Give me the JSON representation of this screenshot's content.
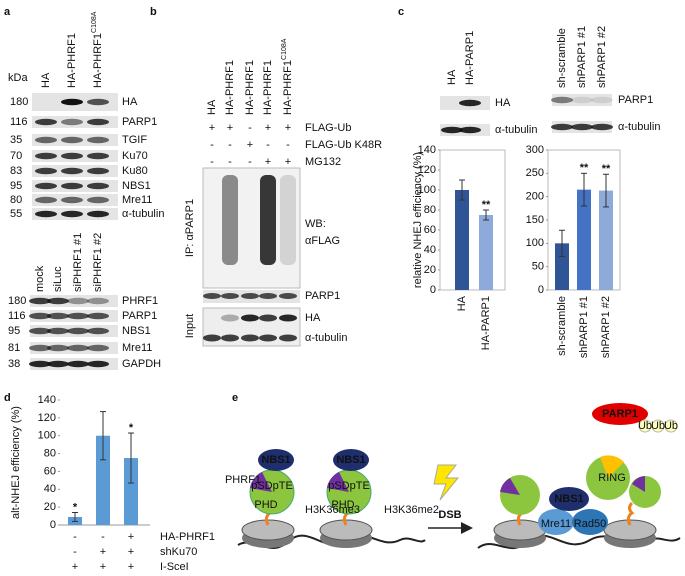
{
  "panel_labels": [
    "a",
    "b",
    "c",
    "d",
    "e"
  ],
  "panel_a": {
    "kda": "kDa",
    "top_lanes": [
      {
        "name": "HA"
      },
      {
        "name": "HA-PHRF1"
      },
      {
        "name": "HA-PHRF1",
        "sup": "C108A"
      }
    ],
    "top_rows": [
      {
        "kda": 180,
        "name": "HA"
      },
      {
        "kda": 116,
        "name": "PARP1"
      },
      {
        "kda": 35,
        "name": "TGIF"
      },
      {
        "kda": 70,
        "name": "Ku70"
      },
      {
        "kda": 83,
        "name": "Ku80"
      },
      {
        "kda": 95,
        "name": "NBS1"
      },
      {
        "kda": 80,
        "name": "Mre11"
      },
      {
        "kda": 55,
        "name": "α-tubulin"
      }
    ],
    "bottom_lanes": [
      {
        "name": "mock"
      },
      {
        "name": "siLuc"
      },
      {
        "name": "siPHRF1 #1"
      },
      {
        "name": "siPHRF1 #2"
      }
    ],
    "bottom_rows": [
      {
        "kda": 180,
        "name": "PHRF1"
      },
      {
        "kda": 116,
        "name": "PARP1"
      },
      {
        "kda": 95,
        "name": "NBS1"
      },
      {
        "kda": 81,
        "name": "Mre11"
      },
      {
        "kda": 38,
        "name": "GAPDH"
      }
    ]
  },
  "panel_b": {
    "lanes": [
      {
        "name": "HA"
      },
      {
        "name": "HA-PHRF1"
      },
      {
        "name": "HA-PHRF1"
      },
      {
        "name": "HA-PHRF1"
      },
      {
        "name": "HA-PHRF1",
        "sup": "C108A"
      }
    ],
    "conditions": [
      {
        "name": "FLAG-Ub",
        "signs": [
          "+",
          "+",
          "-",
          "+",
          "+"
        ]
      },
      {
        "name": "FLAG-Ub K48R",
        "signs": [
          "-",
          "-",
          "+",
          "-",
          "-"
        ]
      },
      {
        "name": "MG132",
        "signs": [
          "-",
          "-",
          "-",
          "+",
          "+"
        ]
      }
    ],
    "ip_label": "IP: αPARP1",
    "wb_label": [
      "WB:",
      "αFLAG"
    ],
    "ip_rows": [
      "PARP1"
    ],
    "input_label": "Input",
    "input_rows": [
      "HA",
      "α-tubulin"
    ]
  },
  "panel_c": {
    "left_lanes": [
      "HA",
      "HA-PARP1"
    ],
    "left_rows": [
      "HA",
      "α-tubulin"
    ],
    "right_lanes": [
      "sh-scramble",
      "shPARP1 #1",
      "shPARP1 #2"
    ],
    "right_rows": [
      "PARP1",
      "α-tubulin"
    ]
  },
  "chart_data": [
    {
      "type": "bar",
      "ylabel": "relative NHEJ efficiency (%)",
      "categories": [
        "HA",
        "HA-PARP1"
      ],
      "values": [
        100,
        75
      ],
      "errors": [
        10,
        5
      ],
      "colors": [
        "#2f5597",
        "#8eaadb"
      ],
      "significance": [
        null,
        "**"
      ],
      "ylim": [
        0,
        140
      ],
      "yticks": [
        0,
        20,
        40,
        60,
        80,
        100,
        120,
        140
      ]
    },
    {
      "type": "bar",
      "categories": [
        "sh-scramble",
        "shPARP1 #1",
        "shPARP1 #2"
      ],
      "values": [
        100,
        215,
        213
      ],
      "errors": [
        28,
        35,
        35
      ],
      "colors": [
        "#2f5597",
        "#4472c4",
        "#8eaadb"
      ],
      "significance": [
        null,
        "**",
        "**"
      ],
      "ylim": [
        0,
        300
      ],
      "yticks": [
        0,
        50,
        100,
        150,
        200,
        250,
        300
      ]
    },
    {
      "type": "bar",
      "ylabel": "alt-NHEJ efficiency (%)",
      "values": [
        9,
        100,
        75
      ],
      "errors": [
        5,
        27,
        28
      ],
      "color": "#5b9bd5",
      "significance": [
        "*",
        null,
        "*"
      ],
      "ylim": [
        0,
        140
      ],
      "yticks": [
        0,
        20,
        40,
        60,
        80,
        100,
        120,
        140
      ],
      "conditions": [
        {
          "name": "HA-PHRF1",
          "signs": [
            "-",
            "-",
            "+"
          ]
        },
        {
          "name": "shKu70",
          "signs": [
            "-",
            "+",
            "+"
          ]
        },
        {
          "name": "I-SceI",
          "signs": [
            "+",
            "+",
            "+"
          ]
        }
      ]
    }
  ],
  "panel_e": {
    "labels": [
      "NBS1",
      "PHRF1",
      "pSDpTE",
      "PHD",
      "H3K36me3",
      "NBS1",
      "pSDpTE",
      "PHD",
      "H3K36me2",
      "DSB",
      "PARP1",
      "Ub",
      "Ub",
      "Ub",
      "RING",
      "NBS1",
      "Mre11",
      "Rad50"
    ]
  }
}
